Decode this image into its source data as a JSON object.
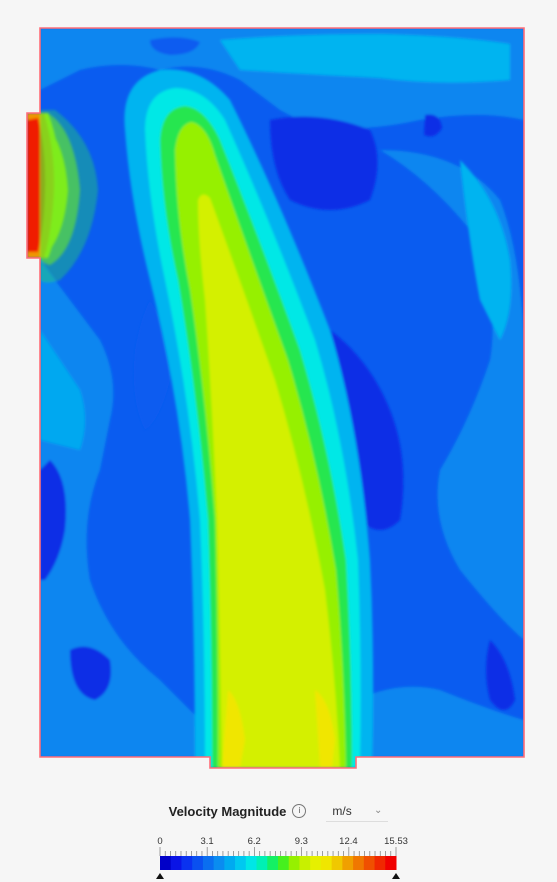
{
  "legend": {
    "title": "Velocity Magnitude",
    "info_icon": "info-icon",
    "unit": "m/s",
    "dropdown_icon": "chevron-down-icon",
    "min": 0,
    "max": 15.53,
    "tick_labels": [
      "0",
      "3.1",
      "6.2",
      "9.3",
      "12.4",
      "15.53"
    ],
    "tick_values": [
      0,
      3.1,
      6.2,
      9.3,
      12.4,
      15.53
    ],
    "color_steps": [
      "#0000c8",
      "#0a14e6",
      "#0a32f0",
      "#0a50f0",
      "#0a6ef0",
      "#0a8cf0",
      "#00aaf0",
      "#00c8f0",
      "#00e6e6",
      "#00f0b4",
      "#14f064",
      "#46f01e",
      "#96f000",
      "#c8f000",
      "#e6f000",
      "#f0e600",
      "#f0c800",
      "#f0a000",
      "#f07800",
      "#f05000",
      "#f02800",
      "#f00000"
    ],
    "marker_icon": "triangle-marker-icon"
  },
  "viewport": {
    "domain_colors": {
      "very_low": "#0a2ee6",
      "low": "#0a5cf0",
      "low_mid": "#0a86f0",
      "mid": "#00b4f0",
      "cyan": "#00e8e6",
      "green": "#28e650",
      "lime": "#96f000",
      "yellow": "#d4f000",
      "orange": "#f09600",
      "red": "#f01e00",
      "outline": "#ff6e78"
    }
  }
}
